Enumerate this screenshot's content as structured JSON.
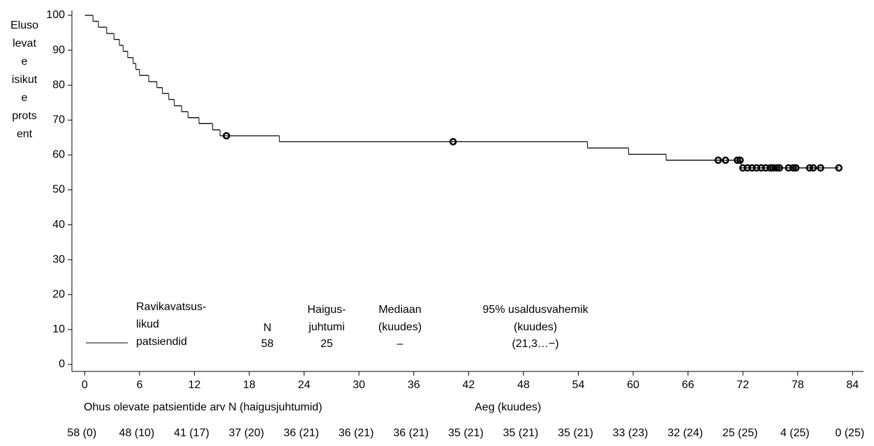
{
  "chart_data": {
    "type": "step",
    "ylabel_lines": [
      "Eluso",
      "levat",
      "e",
      "isikut",
      "e",
      "prots",
      "ent"
    ],
    "xlabel": "Aeg (kuudes)",
    "xlim": [
      -1.4,
      85.2
    ],
    "ylim": [
      -2,
      101.4
    ],
    "xticks": [
      0,
      6,
      12,
      18,
      24,
      30,
      36,
      42,
      48,
      54,
      60,
      66,
      72,
      78,
      84
    ],
    "yticks": [
      0,
      10,
      20,
      30,
      40,
      50,
      60,
      70,
      80,
      90,
      100
    ],
    "series": [
      {
        "name_lines": [
          "Ravikavatsus-",
          "likud",
          "patsiendid"
        ],
        "color": "#000000",
        "x": [
          0,
          0.9,
          1.5,
          2.4,
          3.2,
          3.8,
          4.2,
          4.7,
          5.3,
          5.6,
          6.0,
          7.0,
          7.9,
          8.5,
          9.2,
          9.8,
          10.6,
          11.3,
          12.5,
          14.0,
          14.8,
          21.3,
          55.0,
          59.5,
          63.6,
          71.8,
          82.5
        ],
        "values": [
          100,
          98.3,
          96.6,
          94.8,
          93.1,
          91.4,
          89.7,
          87.9,
          86.2,
          84.5,
          82.8,
          81.0,
          79.3,
          77.6,
          75.9,
          74.1,
          72.4,
          70.7,
          69.0,
          67.2,
          65.5,
          63.8,
          62.0,
          60.2,
          58.5,
          56.3,
          56.3
        ],
        "censored_x": [
          15.5,
          40.3,
          69.3,
          70.1,
          71.4,
          71.7,
          72.0,
          72.5,
          73.0,
          73.5,
          74.0,
          74.5,
          75.0,
          75.3,
          75.7,
          76.0,
          77.0,
          77.5,
          77.8,
          79.3,
          79.7,
          80.5,
          82.5
        ],
        "censored_values": [
          65.5,
          63.8,
          58.5,
          58.5,
          58.5,
          58.5,
          56.3,
          56.3,
          56.3,
          56.3,
          56.3,
          56.3,
          56.3,
          56.3,
          56.3,
          56.3,
          56.3,
          56.3,
          56.3,
          56.3,
          56.3,
          56.3,
          56.3
        ]
      }
    ],
    "legend_table": {
      "n_header": "N",
      "n": "58",
      "events_header_lines": [
        "Haigus-",
        "juhtumi"
      ],
      "events": "25",
      "median_header_lines": [
        "Mediaan",
        "(kuudes)"
      ],
      "median": "–",
      "ci_header_lines": [
        "95% usaldusvahemik",
        "(kuudes)"
      ],
      "ci": "(21,3…−)"
    },
    "risk_table": {
      "title": "Ohus olevate patsientide arv N (haigusjuhtumid)",
      "values": [
        "58 (0)",
        "48 (10)",
        "41 (17)",
        "37 (20)",
        "36 (21)",
        "36 (21)",
        "36 (21)",
        "35 (21)",
        "35 (21)",
        "35 (21)",
        "33 (23)",
        "32 (24)",
        "25 (25)",
        "4 (25)",
        "0 (25)"
      ]
    }
  }
}
